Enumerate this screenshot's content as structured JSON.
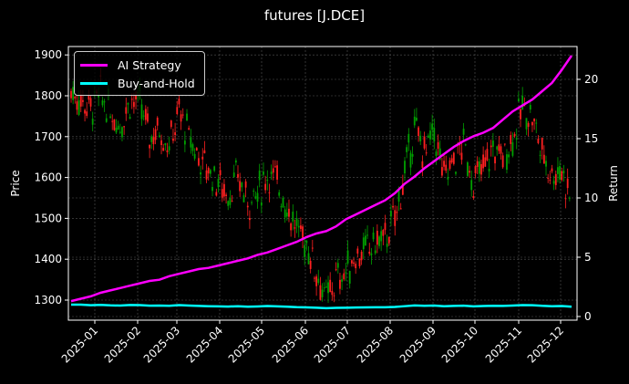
{
  "title": "futures [J.DCE]",
  "legend": {
    "items": [
      {
        "label": "AI Strategy",
        "color": "#ff00ff"
      },
      {
        "label": "Buy-and-Hold",
        "color": "#00ffff"
      }
    ]
  },
  "axes": {
    "ylabel_left": "Price",
    "ylabel_right": "Return",
    "left_ticks": [
      "1300",
      "1400",
      "1500",
      "1600",
      "1700",
      "1800",
      "1900"
    ],
    "right_ticks": [
      "0",
      "5",
      "10",
      "15",
      "20"
    ],
    "x_ticks": [
      "2025-01",
      "2025-02",
      "2025-03",
      "2025-04",
      "2025-05",
      "2025-06",
      "2025-07",
      "2025-08",
      "2025-09",
      "2025-10",
      "2025-11",
      "2025-12"
    ]
  },
  "colors": {
    "up": "#00a000",
    "down": "#ff2020",
    "ai": "#ff00ff",
    "bh": "#00ffff",
    "grid": "#555555"
  },
  "chart_data": {
    "type": "line",
    "title": "futures [J.DCE]",
    "xlabel": "",
    "ylabel": "Price",
    "ylabel_secondary": "Return",
    "ylim": [
      1255,
      1925
    ],
    "ylim_secondary": [
      -0.3,
      22.8
    ],
    "grid": true,
    "legend_position": "upper left",
    "x": [
      "2024-12-16",
      "2024-12-23",
      "2024-12-30",
      "2025-01-06",
      "2025-01-13",
      "2025-01-20",
      "2025-01-27",
      "2025-02-03",
      "2025-02-10",
      "2025-02-17",
      "2025-02-24",
      "2025-03-03",
      "2025-03-10",
      "2025-03-17",
      "2025-03-24",
      "2025-03-31",
      "2025-04-07",
      "2025-04-14",
      "2025-04-21",
      "2025-04-28",
      "2025-05-05",
      "2025-05-12",
      "2025-05-19",
      "2025-05-26",
      "2025-06-02",
      "2025-06-09",
      "2025-06-16",
      "2025-06-23",
      "2025-06-30",
      "2025-07-07",
      "2025-07-14",
      "2025-07-21",
      "2025-07-28",
      "2025-08-04",
      "2025-08-11",
      "2025-08-18",
      "2025-08-25",
      "2025-09-01",
      "2025-09-08",
      "2025-09-15",
      "2025-09-22",
      "2025-09-29",
      "2025-10-06",
      "2025-10-13",
      "2025-10-20",
      "2025-10-27",
      "2025-11-03",
      "2025-11-10",
      "2025-11-17",
      "2025-11-24",
      "2025-12-01",
      "2025-12-08"
    ],
    "series": [
      {
        "name": "Price (close, candlestick)",
        "axis": "left",
        "values": [
          1810,
          1790,
          1770,
          1800,
          1760,
          1730,
          1790,
          1780,
          1700,
          1720,
          1680,
          1760,
          1700,
          1650,
          1620,
          1590,
          1560,
          1600,
          1540,
          1560,
          1610,
          1590,
          1530,
          1470,
          1440,
          1370,
          1300,
          1350,
          1370,
          1410,
          1420,
          1440,
          1450,
          1500,
          1610,
          1720,
          1660,
          1710,
          1600,
          1640,
          1680,
          1590,
          1620,
          1670,
          1650,
          1700,
          1770,
          1750,
          1660,
          1610,
          1620,
          1540
        ]
      },
      {
        "name": "AI Strategy",
        "axis": "right",
        "values": [
          1.3,
          1.5,
          1.7,
          2.0,
          2.2,
          2.4,
          2.6,
          2.8,
          3.0,
          3.1,
          3.4,
          3.6,
          3.8,
          4.0,
          4.1,
          4.3,
          4.5,
          4.7,
          4.9,
          5.2,
          5.4,
          5.7,
          6.0,
          6.3,
          6.7,
          7.0,
          7.2,
          7.6,
          8.2,
          8.6,
          9.0,
          9.4,
          9.8,
          10.4,
          11.2,
          11.8,
          12.5,
          13.1,
          13.7,
          14.3,
          14.8,
          15.2,
          15.5,
          15.9,
          16.6,
          17.3,
          17.8,
          18.3,
          19.0,
          19.7,
          20.8,
          22.0
        ]
      },
      {
        "name": "Buy-and-Hold",
        "axis": "right",
        "values": [
          1.0,
          1.0,
          0.95,
          0.98,
          0.94,
          0.92,
          0.97,
          0.96,
          0.91,
          0.92,
          0.9,
          0.96,
          0.92,
          0.89,
          0.87,
          0.86,
          0.84,
          0.87,
          0.83,
          0.85,
          0.88,
          0.86,
          0.83,
          0.79,
          0.77,
          0.74,
          0.7,
          0.73,
          0.74,
          0.76,
          0.77,
          0.78,
          0.78,
          0.81,
          0.87,
          0.93,
          0.9,
          0.92,
          0.87,
          0.89,
          0.91,
          0.86,
          0.88,
          0.9,
          0.89,
          0.92,
          0.96,
          0.95,
          0.9,
          0.87,
          0.88,
          0.83
        ]
      }
    ]
  }
}
